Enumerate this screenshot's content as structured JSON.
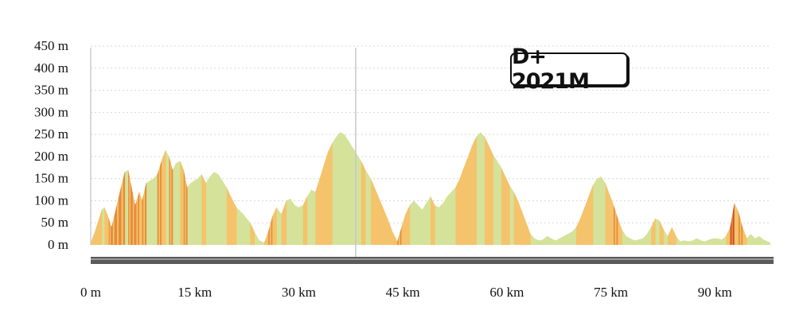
{
  "chart_data": {
    "type": "area",
    "title": "",
    "xlabel": "",
    "ylabel": "",
    "xlim": [
      0,
      98
    ],
    "ylim": [
      0,
      450
    ],
    "grid": true,
    "x_ticks": [
      0,
      15,
      30,
      45,
      60,
      75,
      90
    ],
    "x_tick_labels": [
      "0 m",
      "15 km",
      "30 km",
      "45 km",
      "60 km",
      "75 km",
      "90 km"
    ],
    "y_ticks": [
      0,
      50,
      100,
      150,
      200,
      250,
      300,
      350,
      400,
      450
    ],
    "y_tick_labels": [
      "0 m",
      "50 m",
      "100 m",
      "150 m",
      "200 m",
      "250 m",
      "300 m",
      "350 m",
      "400 m",
      "450 m"
    ],
    "annotation": "D+ 2021M",
    "marker_x_km": 38.2,
    "series": [
      {
        "x": [
          0,
          0.6,
          1.0,
          1.6,
          2.0,
          2.6,
          3.0,
          3.6,
          4.2,
          4.9,
          5.4,
          5.9,
          6.4,
          7.0,
          7.4,
          8.0,
          8.5,
          9.0,
          9.6,
          10.2,
          10.8,
          11.3,
          11.8,
          12.3,
          12.9,
          13.4,
          13.9,
          14.4,
          14.9,
          15.4,
          16.0,
          16.6,
          17.2,
          17.8,
          18.4,
          19.0,
          19.6,
          20.2,
          21.0,
          22.0,
          23.0,
          23.6,
          24.3,
          25.0,
          25.6,
          26.2,
          26.8,
          27.5,
          28.2,
          28.8,
          29.4,
          30.0,
          30.6,
          31.2,
          31.8,
          32.4,
          33.0,
          33.6,
          34.2,
          34.8,
          35.4,
          36.0,
          36.6,
          37.2,
          37.8,
          38.4,
          39.0,
          39.6,
          40.4,
          41.2,
          42.0,
          42.8,
          43.5,
          44.2,
          44.8,
          45.4,
          46.0,
          46.6,
          47.2,
          47.8,
          48.4,
          49.0,
          49.6,
          50.2,
          50.8,
          51.4,
          52.0,
          52.6,
          53.2,
          53.8,
          54.4,
          55.0,
          55.6,
          56.2,
          56.8,
          57.4,
          58.0,
          58.6,
          59.2,
          59.8,
          60.4,
          61.0,
          61.6,
          62.2,
          62.8,
          63.4,
          64.0,
          64.6,
          65.2,
          65.8,
          66.4,
          67.0,
          67.6,
          68.2,
          68.8,
          69.4,
          70.0,
          70.6,
          71.2,
          71.8,
          72.4,
          73.0,
          73.6,
          74.2,
          74.8,
          75.4,
          76.0,
          76.6,
          77.2,
          77.8,
          78.4,
          79.0,
          79.6,
          80.2,
          80.8,
          81.4,
          82.0,
          82.6,
          83.2,
          83.8,
          84.4,
          85.0,
          85.6,
          86.2,
          86.8,
          87.4,
          88.0,
          88.6,
          89.2,
          89.8,
          90.4,
          91.0,
          91.6,
          92.2,
          92.8,
          93.4,
          94.0,
          94.6,
          95.2,
          95.8,
          96.4,
          97.0,
          97.6,
          98.0
        ],
        "y": [
          5,
          30,
          50,
          80,
          85,
          60,
          40,
          80,
          120,
          165,
          170,
          130,
          90,
          120,
          100,
          140,
          145,
          150,
          160,
          190,
          215,
          200,
          170,
          185,
          190,
          170,
          130,
          140,
          145,
          150,
          160,
          140,
          155,
          165,
          160,
          145,
          130,
          110,
          85,
          70,
          50,
          30,
          10,
          5,
          30,
          65,
          85,
          70,
          100,
          105,
          90,
          85,
          90,
          110,
          125,
          120,
          150,
          180,
          210,
          230,
          245,
          255,
          250,
          235,
          220,
          205,
          190,
          170,
          150,
          120,
          90,
          60,
          30,
          8,
          40,
          70,
          90,
          100,
          90,
          80,
          95,
          110,
          90,
          85,
          95,
          110,
          120,
          130,
          150,
          175,
          200,
          225,
          245,
          255,
          245,
          225,
          205,
          190,
          175,
          155,
          135,
          120,
          100,
          75,
          50,
          25,
          15,
          10,
          12,
          20,
          15,
          10,
          15,
          20,
          25,
          30,
          40,
          60,
          85,
          110,
          135,
          150,
          155,
          140,
          115,
          90,
          60,
          35,
          20,
          15,
          10,
          12,
          15,
          25,
          40,
          60,
          55,
          35,
          20,
          40,
          20,
          8,
          10,
          8,
          10,
          15,
          10,
          8,
          12,
          15,
          15,
          12,
          20,
          40,
          95,
          75,
          40,
          15,
          25,
          15,
          20,
          12,
          8,
          5
        ]
      }
    ]
  },
  "colors": {
    "fill_base": "#d5e29a",
    "stripe_red": "#cb4e27",
    "stripe_orange": "#e78c3c",
    "stripe_yellow": "#f4c36b",
    "axis_bar": "#5a5a5a"
  }
}
